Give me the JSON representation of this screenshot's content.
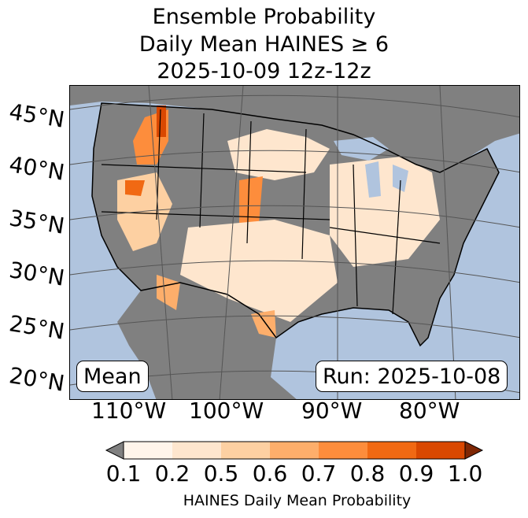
{
  "title": {
    "line1": "Ensemble Probability",
    "line2": "Daily Mean HAINES ≥ 6",
    "line3": "2025-10-09 12z-12z"
  },
  "map": {
    "lat_labels": [
      "45°N",
      "40°N",
      "35°N",
      "30°N",
      "25°N",
      "20°N"
    ],
    "lon_labels": [
      "110°W",
      "100°W",
      "90°W",
      "80°W"
    ],
    "stat_label": "Mean",
    "run_label": "Run: 2025-10-08",
    "colors": {
      "ocean": "#b0c4de",
      "below_threshold": "#808080",
      "gridline": "#555555"
    }
  },
  "colorbar": {
    "label": "HAINES Daily Mean Probability",
    "ticks": [
      "0.1",
      "0.2",
      "0.5",
      "0.6",
      "0.7",
      "0.8",
      "0.9",
      "1.0"
    ],
    "under_color": "#808080",
    "over_color": "#7f2704",
    "bin_colors": [
      "#fff5eb",
      "#fee6ce",
      "#fdd0a2",
      "#fdae6b",
      "#fd8d3c",
      "#f16913",
      "#d94801"
    ]
  }
}
